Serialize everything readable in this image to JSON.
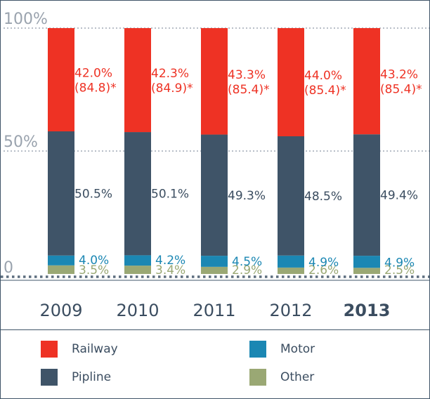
{
  "chart_data": {
    "type": "bar",
    "stacked": true,
    "y_tick_labels": [
      "100%",
      "50%",
      "0"
    ],
    "ylim": [
      0,
      100
    ],
    "categories": [
      "2009",
      "2010",
      "2011",
      "2012",
      "2013"
    ],
    "highlight_category": "2013",
    "series": [
      {
        "name": "Other",
        "color": "#9aa874",
        "values": [
          3.5,
          3.4,
          2.9,
          2.6,
          2.5
        ],
        "labels": [
          "3.5%",
          "3.4%",
          "2.9%",
          "2.6%",
          "2.5%"
        ]
      },
      {
        "name": "Motor",
        "color": "#1b87b3",
        "values": [
          4.0,
          4.2,
          4.5,
          4.9,
          4.9
        ],
        "labels": [
          "4.0%",
          "4.2%",
          "4.5%",
          "4.9%",
          "4.9%"
        ]
      },
      {
        "name": "Pipline",
        "color": "#3f5468",
        "values": [
          50.5,
          50.1,
          49.3,
          48.5,
          49.4
        ],
        "labels": [
          "50.5%",
          "50.1%",
          "49.3%",
          "48.5%",
          "49.4%"
        ]
      },
      {
        "name": "Railway",
        "color": "#ee3224",
        "values": [
          42.0,
          42.3,
          43.3,
          44.0,
          43.2
        ],
        "labels": [
          "42.0%",
          "42.3%",
          "43.3%",
          "44.0%",
          "43.2%"
        ],
        "secondary_labels": [
          "(84.8)*",
          "(84.9)*",
          "(85.4)*",
          "(85.4)*",
          "(85.4)*"
        ]
      }
    ],
    "legend_order": [
      "Railway",
      "Motor",
      "Pipline",
      "Other"
    ],
    "grid": true
  }
}
